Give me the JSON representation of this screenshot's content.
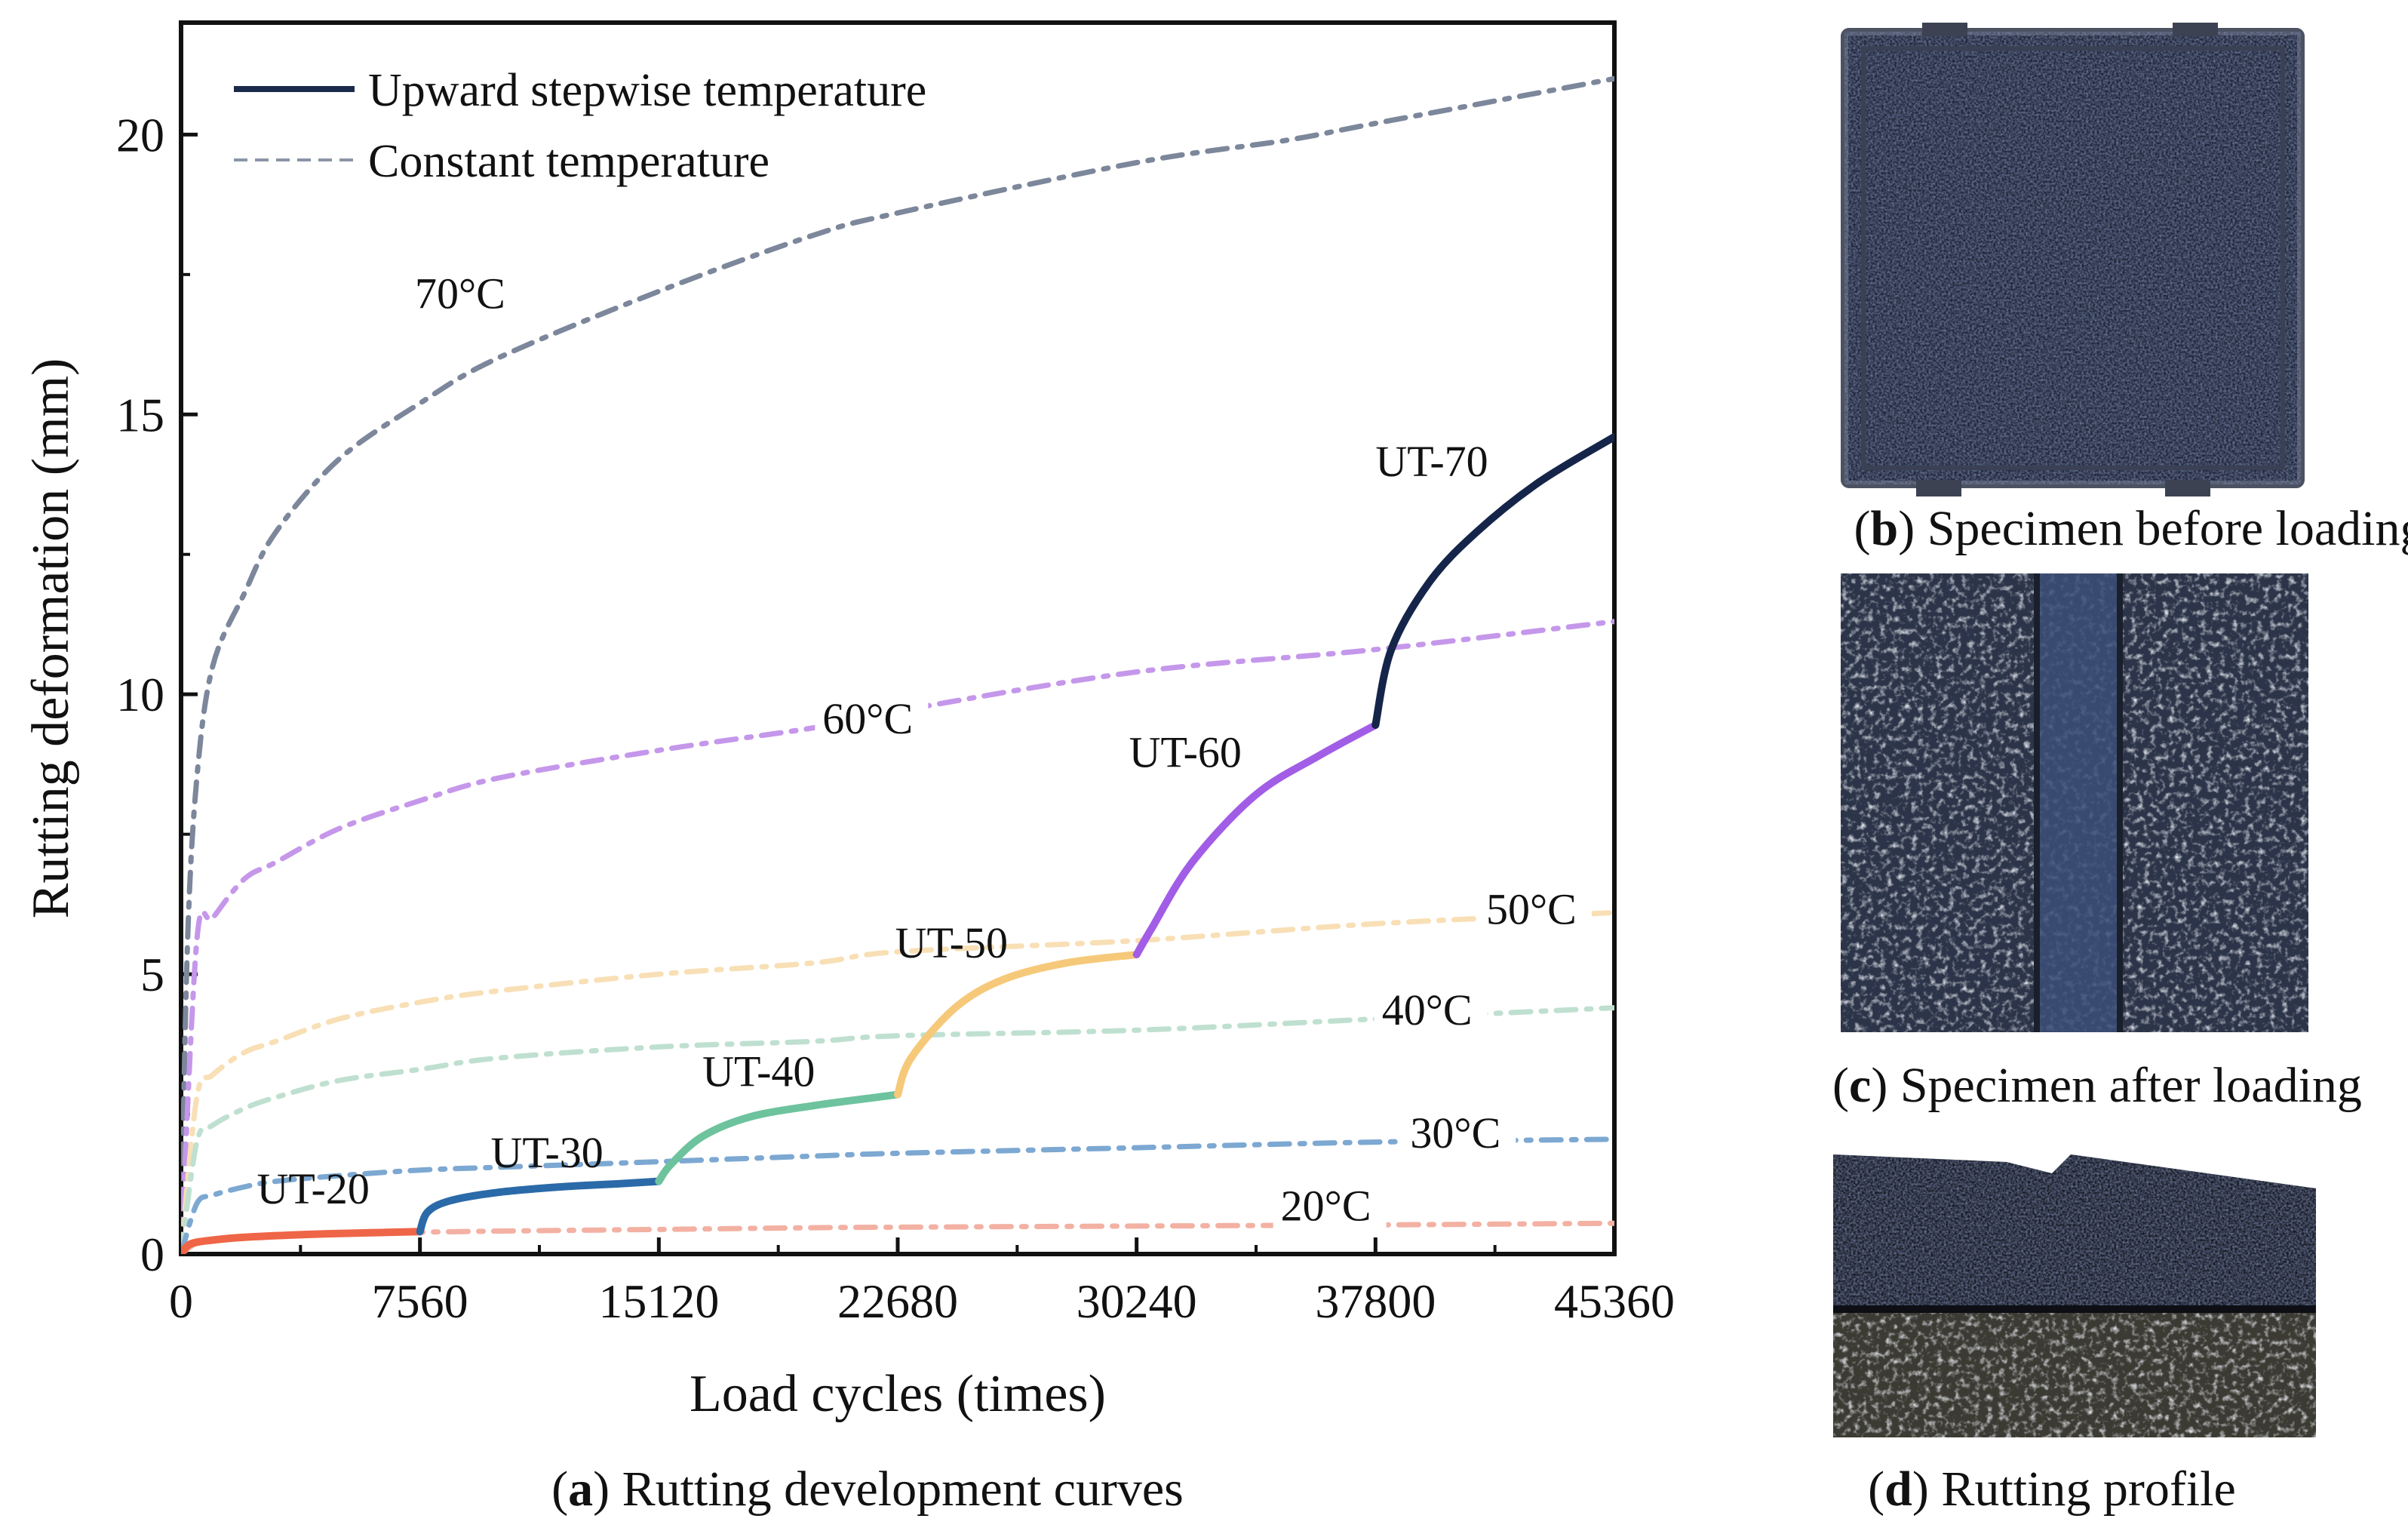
{
  "panels": {
    "a": {
      "letter": "a",
      "caption": "Rutting development curves"
    },
    "b": {
      "letter": "b",
      "caption": "Specimen before loading"
    },
    "c": {
      "letter": "c",
      "caption": "Specimen after loading"
    },
    "d": {
      "letter": "d",
      "caption": "Rutting profile"
    }
  },
  "chart_data": {
    "type": "line",
    "xlabel": "Load cycles (times)",
    "ylabel": "Rutting deformation (mm)",
    "xlim": [
      0,
      45360
    ],
    "ylim": [
      0,
      22
    ],
    "xticks": [
      0,
      7560,
      15120,
      22680,
      30240,
      37800,
      45360
    ],
    "yticks": [
      0,
      5,
      10,
      15,
      20
    ],
    "legend": {
      "position": "top-left",
      "entries": [
        {
          "label": "Upward stepwise temperature",
          "style": "solid",
          "color": "#1b2a4a"
        },
        {
          "label": "Constant temperature",
          "style": "dashed",
          "color": "#8b95a8"
        }
      ]
    },
    "constant_series": [
      {
        "name": "70°C",
        "label": "70°C",
        "color": "#7d879b",
        "label_at": [
          7400,
          16.9
        ],
        "x": [
          0,
          200,
          500,
          1000,
          2000,
          3000,
          5000,
          7560,
          10000,
          15120,
          20000,
          22680,
          30240,
          35000,
          37800,
          45360
        ],
        "y": [
          0,
          5.5,
          8.5,
          10.5,
          11.8,
          12.9,
          14.2,
          15.2,
          16.0,
          17.2,
          18.2,
          18.6,
          19.5,
          19.9,
          20.2,
          21.0
        ]
      },
      {
        "name": "60°C",
        "label": "60°C",
        "color": "#c597ea",
        "label_at": [
          20300,
          9.3
        ],
        "x": [
          0,
          500,
          1000,
          2000,
          3000,
          5000,
          7560,
          10000,
          15120,
          20000,
          22680,
          30240,
          37800,
          45360
        ],
        "y": [
          0,
          5.6,
          6.0,
          6.7,
          7.0,
          7.6,
          8.1,
          8.5,
          9.0,
          9.4,
          9.7,
          10.4,
          10.8,
          11.3
        ]
      },
      {
        "name": "50°C",
        "label": "50°C",
        "color": "#f8dfb5",
        "label_at": [
          41300,
          5.9
        ],
        "x": [
          0,
          500,
          1000,
          2000,
          3000,
          5000,
          7560,
          10000,
          15120,
          20000,
          22680,
          30240,
          37800,
          45360
        ],
        "y": [
          0,
          2.8,
          3.2,
          3.6,
          3.8,
          4.2,
          4.5,
          4.7,
          5.0,
          5.2,
          5.4,
          5.6,
          5.9,
          6.1
        ]
      },
      {
        "name": "40°C",
        "label": "40°C",
        "color": "#bfe0d0",
        "label_at": [
          38000,
          4.1
        ],
        "x": [
          0,
          500,
          1000,
          2000,
          3000,
          5000,
          7560,
          10000,
          15120,
          20000,
          22680,
          30240,
          37800,
          45360
        ],
        "y": [
          0,
          2.0,
          2.3,
          2.6,
          2.8,
          3.1,
          3.3,
          3.5,
          3.7,
          3.8,
          3.9,
          4.0,
          4.2,
          4.4
        ]
      },
      {
        "name": "30°C",
        "label": "30°C",
        "color": "#7ca8d2",
        "label_at": [
          38900,
          1.9
        ],
        "x": [
          0,
          500,
          1000,
          2000,
          3000,
          5000,
          7560,
          10000,
          15120,
          20000,
          22680,
          30240,
          37800,
          45360
        ],
        "y": [
          0,
          0.9,
          1.05,
          1.2,
          1.3,
          1.4,
          1.5,
          1.55,
          1.65,
          1.75,
          1.8,
          1.9,
          2.0,
          2.05
        ]
      },
      {
        "name": "20°C",
        "label": "20°C",
        "color": "#f3b1a3",
        "label_at": [
          34800,
          0.6
        ],
        "x": [
          0,
          500,
          1000,
          2000,
          3000,
          5000,
          7560,
          10000,
          15120,
          20000,
          22680,
          30240,
          37800,
          45360
        ],
        "y": [
          0,
          0.2,
          0.25,
          0.3,
          0.33,
          0.36,
          0.39,
          0.41,
          0.44,
          0.47,
          0.48,
          0.5,
          0.52,
          0.55
        ]
      }
    ],
    "stepwise_series": [
      {
        "name": "UT-20",
        "label": "UT-20",
        "color": "#ef6547",
        "label_at": [
          2400,
          0.9
        ],
        "x": [
          0,
          300,
          1000,
          2000,
          4000,
          6000,
          7560
        ],
        "y": [
          0,
          0.18,
          0.25,
          0.3,
          0.35,
          0.38,
          0.4
        ]
      },
      {
        "name": "UT-30",
        "label": "UT-30",
        "color": "#2b6aa8",
        "label_at": [
          9800,
          1.55
        ],
        "x": [
          7560,
          7800,
          8500,
          10000,
          12000,
          14000,
          15120
        ],
        "y": [
          0.4,
          0.75,
          0.95,
          1.1,
          1.2,
          1.26,
          1.3
        ]
      },
      {
        "name": "UT-40",
        "label": "UT-40",
        "color": "#6dc39d",
        "label_at": [
          16500,
          3.0
        ],
        "x": [
          15120,
          15500,
          16500,
          18000,
          20000,
          22000,
          22680
        ],
        "y": [
          1.3,
          1.6,
          2.1,
          2.45,
          2.65,
          2.8,
          2.85
        ]
      },
      {
        "name": "UT-50",
        "label": "UT-50",
        "color": "#f6c97a",
        "label_at": [
          22600,
          5.3
        ],
        "x": [
          22680,
          23100,
          24500,
          26000,
          28000,
          30240
        ],
        "y": [
          2.85,
          3.5,
          4.4,
          4.9,
          5.2,
          5.35
        ]
      },
      {
        "name": "UT-60",
        "label": "UT-60",
        "color": "#a25de6",
        "label_at": [
          30000,
          8.7
        ],
        "x": [
          30240,
          30700,
          32000,
          34000,
          36000,
          37800
        ],
        "y": [
          5.35,
          5.8,
          7.0,
          8.2,
          8.9,
          9.45
        ]
      },
      {
        "name": "UT-70",
        "label": "UT-70",
        "color": "#15254a",
        "label_at": [
          37800,
          13.9
        ],
        "x": [
          37800,
          38300,
          39500,
          41000,
          43000,
          45360
        ],
        "y": [
          9.45,
          10.8,
          12.0,
          12.9,
          13.8,
          14.6
        ]
      }
    ]
  },
  "photos": {
    "b": {
      "description_icon": "asphalt-slab-top-view-icon"
    },
    "c": {
      "description_icon": "rutted-slab-top-view-icon"
    },
    "d": {
      "description_icon": "rutting-cross-section-icon"
    }
  }
}
